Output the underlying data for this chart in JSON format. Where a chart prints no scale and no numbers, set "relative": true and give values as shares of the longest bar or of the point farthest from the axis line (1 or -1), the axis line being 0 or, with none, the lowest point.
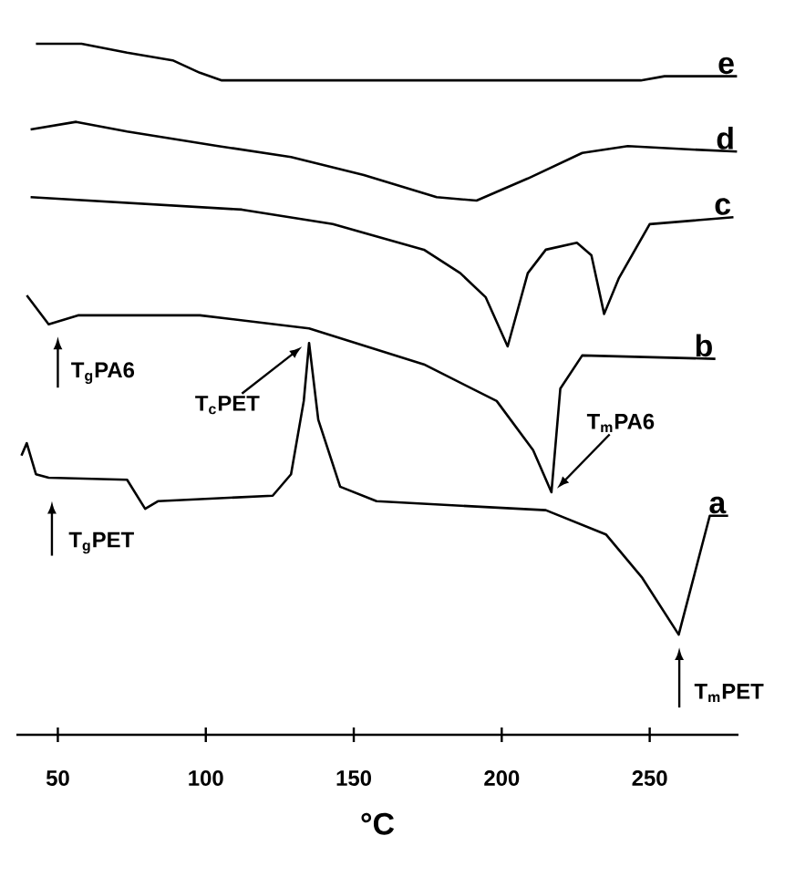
{
  "chart_data": {
    "type": "line",
    "relative": true,
    "xlabel": "°C",
    "xlim": [
      36,
      280
    ],
    "xticks": [
      50,
      100,
      150,
      200,
      250
    ],
    "series": [
      {
        "name": "a",
        "color": "#000000",
        "x": [
          37.7,
          39.5,
          42.6,
          46.9,
          73.4,
          79.5,
          83.8,
          122.6,
          128.8,
          133.1,
          134.9,
          138,
          145.4,
          157.7,
          214.9,
          235.2,
          247.5,
          259.8,
          270.3,
          276.5
        ],
        "values": [
          0.404,
          0.422,
          0.377,
          0.372,
          0.369,
          0.327,
          0.338,
          0.346,
          0.377,
          0.483,
          0.567,
          0.456,
          0.359,
          0.338,
          0.325,
          0.29,
          0.227,
          0.145,
          0.317,
          0.317
        ]
      },
      {
        "name": "b",
        "color": "#000000",
        "x": [
          39.5,
          46.9,
          56.8,
          98,
          134.9,
          173.7,
          198.3,
          210.6,
          216.8,
          219.8,
          227.2,
          272.2
        ],
        "values": [
          0.636,
          0.594,
          0.607,
          0.607,
          0.588,
          0.536,
          0.483,
          0.412,
          0.351,
          0.501,
          0.549,
          0.544
        ]
      },
      {
        "name": "c",
        "color": "#000000",
        "x": [
          40.8,
          112.2,
          142.9,
          173.7,
          186,
          194.6,
          202,
          208.8,
          214.9,
          225.4,
          230.3,
          234.6,
          239.5,
          250,
          278.3
        ],
        "values": [
          0.778,
          0.76,
          0.739,
          0.702,
          0.668,
          0.633,
          0.562,
          0.668,
          0.702,
          0.712,
          0.694,
          0.609,
          0.66,
          0.739,
          0.749
        ]
      },
      {
        "name": "d",
        "color": "#000000",
        "x": [
          40.8,
          56.2,
          73.4,
          104.2,
          128.8,
          153.4,
          178,
          191.5,
          208.8,
          227.2,
          242.6,
          264.2,
          279.5
        ],
        "values": [
          0.876,
          0.887,
          0.873,
          0.852,
          0.836,
          0.81,
          0.778,
          0.773,
          0.805,
          0.842,
          0.852,
          0.847,
          0.844
        ]
      },
      {
        "name": "e",
        "color": "#000000",
        "x": [
          42.6,
          58,
          73.4,
          88.8,
          98,
          105.4,
          153,
          215,
          247,
          255,
          279.5
        ],
        "values": [
          1.0,
          1.0,
          0.987,
          0.976,
          0.958,
          0.947,
          0.947,
          0.947,
          0.947,
          0.953,
          0.953
        ]
      }
    ],
    "annotations": [
      {
        "text": "T$_{g}$PA6",
        "x": 50,
        "y": 0.6
      },
      "T$_{c}$PET",
      "T$_{m}$PA6",
      {
        "text": "T$_{g}$PET",
        "x": 48,
        "y": 0.37
      },
      {
        "text": "T$_{m}$PET",
        "x": 260,
        "y": 0.145
      }
    ]
  }
}
